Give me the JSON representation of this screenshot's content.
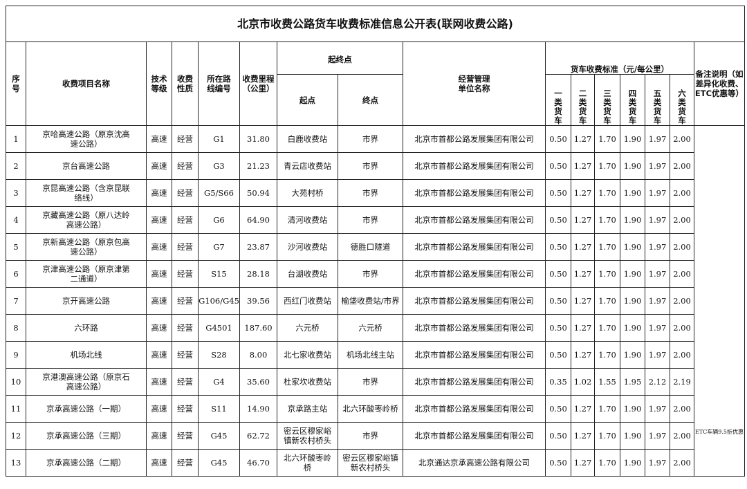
{
  "title": "北京市收费公路货车收费标准信息公开表(联网收费公路)",
  "headers": {
    "no": "序号",
    "name": "收费项目名称",
    "grade": "技术等级",
    "nature": "收费性质",
    "route": "所在路线编号",
    "mileage": "收费里程（公里）",
    "endpoints": "起终点",
    "start": "起点",
    "end": "终点",
    "operator": "经营管理单位名称",
    "standard": "货车收费标准（元/每公里）",
    "classes": [
      "一类货车",
      "二类货车",
      "三类货车",
      "四类货车",
      "五类货车",
      "六类货车"
    ],
    "remark": "备注说明（如差异化收费、ETC优惠等）"
  },
  "remark_text": "ETC车辆9.5折优惠",
  "rows": [
    {
      "no": "1",
      "name": "京哈高速公路（原京沈高速公路）",
      "grade": "高速",
      "nature": "经营",
      "route": "G1",
      "mileage": "31.80",
      "start": "白鹿收费站",
      "end": "市界",
      "operator": "北京市首都公路发展集团有限公司",
      "fees": [
        "0.50",
        "1.27",
        "1.70",
        "1.90",
        "1.97",
        "2.00"
      ]
    },
    {
      "no": "2",
      "name": "京台高速公路",
      "grade": "高速",
      "nature": "经营",
      "route": "G3",
      "mileage": "21.23",
      "start": "青云店收费站",
      "end": "市界",
      "operator": "北京市首都公路发展集团有限公司",
      "fees": [
        "0.50",
        "1.27",
        "1.70",
        "1.90",
        "1.97",
        "2.00"
      ]
    },
    {
      "no": "3",
      "name": "京昆高速公路（含京昆联络线）",
      "grade": "高速",
      "nature": "经营",
      "route": "G5/S66",
      "mileage": "50.94",
      "start": "大苑村桥",
      "end": "市界",
      "operator": "北京市首都公路发展集团有限公司",
      "fees": [
        "0.50",
        "1.27",
        "1.70",
        "1.90",
        "1.97",
        "2.00"
      ]
    },
    {
      "no": "4",
      "name": "京藏高速公路（原八达岭高速公路）",
      "grade": "高速",
      "nature": "经营",
      "route": "G6",
      "mileage": "64.90",
      "start": "清河收费站",
      "end": "市界",
      "operator": "北京市首都公路发展集团有限公司",
      "fees": [
        "0.50",
        "1.27",
        "1.70",
        "1.90",
        "1.97",
        "2.00"
      ]
    },
    {
      "no": "5",
      "name": "京新高速公路（原京包高速公路）",
      "grade": "高速",
      "nature": "经营",
      "route": "G7",
      "mileage": "23.87",
      "start": "沙河收费站",
      "end": "德胜口隧道",
      "operator": "北京市首都公路发展集团有限公司",
      "fees": [
        "0.50",
        "1.27",
        "1.70",
        "1.90",
        "1.97",
        "2.00"
      ]
    },
    {
      "no": "6",
      "name": "京津高速公路（原京津第二通道）",
      "grade": "高速",
      "nature": "经营",
      "route": "S15",
      "mileage": "28.18",
      "start": "台湖收费站",
      "end": "市界",
      "operator": "北京市首都公路发展集团有限公司",
      "fees": [
        "0.50",
        "1.27",
        "1.70",
        "1.90",
        "1.97",
        "2.00"
      ]
    },
    {
      "no": "7",
      "name": "京开高速公路",
      "grade": "高速",
      "nature": "经营",
      "route": "G106/G45",
      "mileage": "39.56",
      "start": "西红门收费站",
      "end": "榆垡收费站/市界",
      "operator": "北京市首都公路发展集团有限公司",
      "fees": [
        "0.50",
        "1.27",
        "1.70",
        "1.90",
        "1.97",
        "2.00"
      ]
    },
    {
      "no": "8",
      "name": "六环路",
      "grade": "高速",
      "nature": "经营",
      "route": "G4501",
      "mileage": "187.60",
      "start": "六元桥",
      "end": "六元桥",
      "operator": "北京市首都公路发展集团有限公司",
      "fees": [
        "0.50",
        "1.27",
        "1.70",
        "1.90",
        "1.97",
        "2.00"
      ]
    },
    {
      "no": "9",
      "name": "机场北线",
      "grade": "高速",
      "nature": "经营",
      "route": "S28",
      "mileage": "8.00",
      "start": "北七家收费站",
      "end": "机场北线主站",
      "operator": "北京市首都公路发展集团有限公司",
      "fees": [
        "0.50",
        "1.27",
        "1.70",
        "1.90",
        "1.97",
        "2.00"
      ]
    },
    {
      "no": "10",
      "name": "京港澳高速公路（原京石高速公路）",
      "grade": "高速",
      "nature": "经营",
      "route": "G4",
      "mileage": "35.60",
      "start": "杜家坎收费站",
      "end": "市界",
      "operator": "北京市首都公路发展集团有限公司",
      "fees": [
        "0.35",
        "1.02",
        "1.55",
        "1.95",
        "2.12",
        "2.19"
      ]
    },
    {
      "no": "11",
      "name": "京承高速公路（一期）",
      "grade": "高速",
      "nature": "经营",
      "route": "S11",
      "mileage": "14.90",
      "start": "京承路主站",
      "end": "北六环酸枣岭桥",
      "operator": "北京市首都公路发展集团有限公司",
      "fees": [
        "0.50",
        "1.27",
        "1.70",
        "1.90",
        "1.97",
        "2.00"
      ]
    },
    {
      "no": "12",
      "name": "京承高速公路（三期）",
      "grade": "高速",
      "nature": "经营",
      "route": "G45",
      "mileage": "62.72",
      "start": "密云区穆家峪镇新农村桥头",
      "end": "市界",
      "operator": "北京市首都公路发展集团有限公司",
      "fees": [
        "0.50",
        "1.27",
        "1.70",
        "1.90",
        "1.97",
        "2.00"
      ]
    },
    {
      "no": "13",
      "name": "京承高速公路（二期）",
      "grade": "高速",
      "nature": "经营",
      "route": "G45",
      "mileage": "46.70",
      "start": "北六环酸枣岭桥",
      "end": "密云区穆家峪镇新农村桥头",
      "operator": "北京通达京承高速公路有限公司",
      "fees": [
        "0.50",
        "1.27",
        "1.70",
        "1.90",
        "1.97",
        "2.00"
      ]
    }
  ]
}
